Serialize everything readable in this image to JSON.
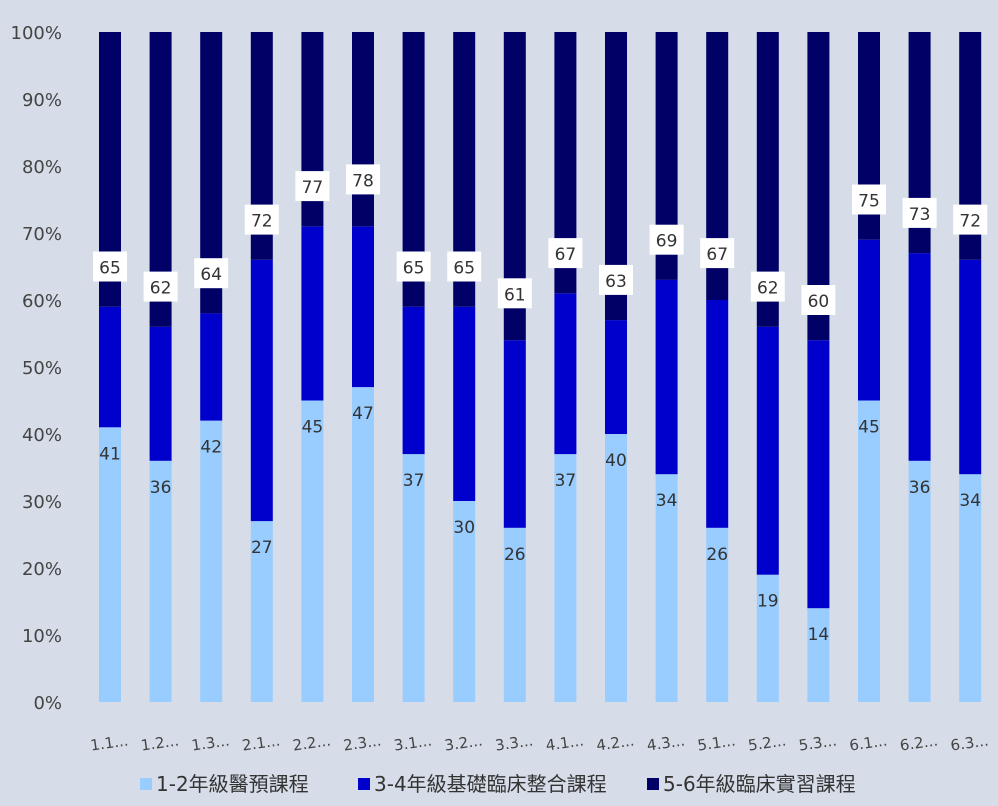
{
  "chart_data": {
    "type": "bar",
    "stacked": true,
    "percent": true,
    "categories": [
      "1.1...",
      "1.2...",
      "1.3...",
      "2.1...",
      "2.2...",
      "2.3...",
      "3.1...",
      "3.2...",
      "3.3...",
      "4.1...",
      "4.2...",
      "4.3...",
      "5.1...",
      "5.2...",
      "5.3...",
      "6.1...",
      "6.2...",
      "6.3..."
    ],
    "yticks": [
      "0%",
      "10%",
      "20%",
      "30%",
      "40%",
      "50%",
      "60%",
      "70%",
      "80%",
      "90%",
      "100%"
    ],
    "ylim": [
      0,
      100
    ],
    "grid": false,
    "legend_position": "bottom",
    "series": [
      {
        "name": "1-2年級醫預課程",
        "color": "#99ccff",
        "label_color": "#333333",
        "values": [
          41,
          36,
          42,
          27,
          45,
          47,
          37,
          30,
          26,
          37,
          40,
          34,
          26,
          19,
          14,
          45,
          36,
          34
        ],
        "labels": [
          "41",
          "36",
          "42",
          "27",
          "45",
          "47",
          "37",
          "30",
          "26",
          "37",
          "40",
          "34",
          "26",
          "19",
          "14",
          "45",
          "36",
          "34"
        ]
      },
      {
        "name": "3-4年級基礎臨床整合課程",
        "color": "#0000cc",
        "values": [
          18,
          20,
          16,
          39,
          26,
          24,
          22,
          29,
          28,
          24,
          17,
          29,
          34,
          37,
          40,
          24,
          31,
          32
        ]
      },
      {
        "name": "5-6年級臨床實習課程",
        "color": "#000066",
        "values": [
          41,
          44,
          42,
          34,
          29,
          29,
          41,
          41,
          46,
          39,
          43,
          37,
          40,
          44,
          46,
          31,
          33,
          34
        ]
      }
    ],
    "cumulative_labels": {
      "values": [
        65,
        62,
        64,
        72,
        77,
        78,
        65,
        65,
        61,
        67,
        63,
        69,
        67,
        62,
        60,
        75,
        73,
        72
      ],
      "labels": [
        "65",
        "62",
        "64",
        "72",
        "77",
        "78",
        "65",
        "65",
        "61",
        "67",
        "63",
        "69",
        "67",
        "62",
        "60",
        "75",
        "73",
        "72"
      ]
    }
  }
}
